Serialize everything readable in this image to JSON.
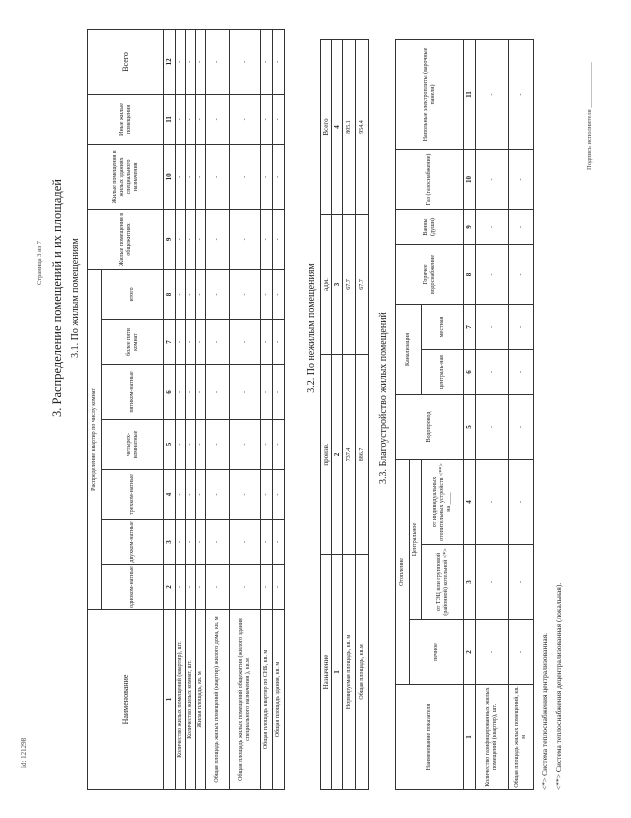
{
  "doc_id": "id: 121298",
  "page_number": "Страница 3 из 7",
  "title": "3. Распределение помещений и их площадей",
  "residential": {
    "heading": "3.1. По жилым помещениям",
    "group_header": "Распределение квартир по числу комнат",
    "columns": [
      "Наименование",
      "одноком-натные",
      "двухком-натные",
      "трехком-натные",
      "четырех-комнатные",
      "пятиком-натные",
      "более пяти комнат",
      "итого",
      "Жилые помещения в общежитиях",
      "Жилые помещения в жилых зданиях специального назначения",
      "Иные жилые помещения",
      "Всего"
    ],
    "numbers": [
      "1",
      "2",
      "3",
      "4",
      "5",
      "6",
      "7",
      "8",
      "9",
      "10",
      "11",
      "12"
    ],
    "rows": [
      {
        "label": "Количество жилых помещений (квартир), шт.",
        "values": [
          "-",
          "-",
          "-",
          "-",
          "-",
          "-",
          "-",
          "-",
          "-",
          "-",
          "-"
        ]
      },
      {
        "label": "Количество жилых комнат, шт.",
        "values": [
          "-",
          "-",
          "-",
          "-",
          "-",
          "-",
          "-",
          "-",
          "-",
          "-",
          "-"
        ]
      },
      {
        "label": "Жилая площадь, кв. м",
        "values": [
          "-",
          "-",
          "-",
          "-",
          "-",
          "-",
          "-",
          "-",
          "-",
          "-",
          "-"
        ]
      },
      {
        "label": "Общая площадь жилых помещений (квартир) жилого дома, кв. м",
        "values": [
          "-",
          "-",
          "-",
          "-",
          "-",
          "-",
          "-",
          "-",
          "-",
          "-",
          "-"
        ]
      },
      {
        "label": "Общая площадь жилых помещений общежития (жилого здания специального назначения ), кв.м",
        "values": [
          "-",
          "-",
          "-",
          "-",
          "-",
          "-",
          "-",
          "-",
          "-",
          "-",
          "-"
        ]
      },
      {
        "label": "Общая площадь квартир по СНБ, кв. м",
        "values": [
          "-",
          "-",
          "-",
          "-",
          "-",
          "-",
          "-",
          "-",
          "-",
          "-",
          "-"
        ]
      },
      {
        "label": "Общая площадь здания, кв. м",
        "values": [
          "-",
          "-",
          "-",
          "-",
          "-",
          "-",
          "-",
          "-",
          "-",
          "-",
          "-"
        ]
      }
    ]
  },
  "nonresidential": {
    "heading": "3.2. По нежилым помещениям",
    "columns": [
      "Назначение",
      "произв.",
      "адм.",
      "Всего"
    ],
    "numbers": [
      "1",
      "2",
      "3",
      "4"
    ],
    "rows": [
      {
        "label": "Нормируемая площадь, кв. м",
        "values": [
          "737.4",
          "67.7",
          "805.1"
        ]
      },
      {
        "label": "Общая площадь, кв.м",
        "values": [
          "886.7",
          "67.7",
          "954.4"
        ]
      }
    ]
  },
  "amenities": {
    "heading": "3.3. Благоустройство жилых помещений",
    "headers": {
      "name": "Наименование показателя",
      "heating": "Отопление",
      "stove": "печное",
      "central": "Центральное",
      "chp": "от ТЭЦ или групповой (районной) котельной <*>",
      "individual": "от индивидуальных отопительных устройств <**> на ____",
      "water": "Водопровод",
      "sewer": "Канализация",
      "sewer_central": "централь-ная",
      "sewer_local": "местная",
      "hot_water": "Горячее водоснабжение",
      "baths": "Ванны (души)",
      "gas": "Газ (газоснабжение)",
      "electric": "Напольные электроплиты (варочные панели)"
    },
    "numbers": [
      "1",
      "2",
      "3",
      "4",
      "5",
      "6",
      "7",
      "8",
      "9",
      "10",
      "11"
    ],
    "rows": [
      {
        "label": "Количество газифицированных жилых помещений (квартир), шт.",
        "values": [
          "-",
          "-",
          "-",
          "-",
          "-",
          "-",
          "-",
          "-",
          "-",
          "-"
        ]
      },
      {
        "label": "Общая площадь жилых помещений, кв. м",
        "values": [
          "-",
          "-",
          "-",
          "-",
          "-",
          "-",
          "-",
          "-",
          "-",
          "-"
        ]
      }
    ]
  },
  "footnotes": [
    "<*> Система теплоснабжения централизованная.",
    "<**> Система теплоснабжения децентрализованная (локальная)."
  ],
  "signature_label": "Подпись исполнителя ______________"
}
